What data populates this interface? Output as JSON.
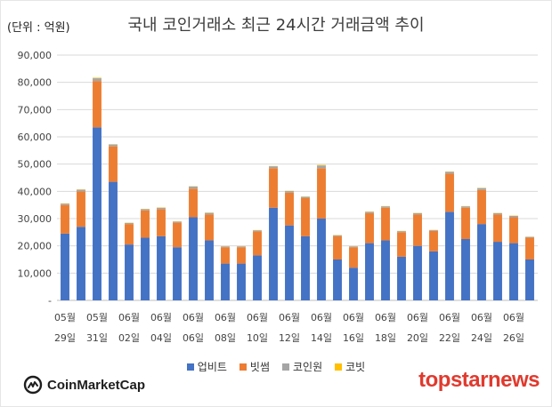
{
  "unit_label": "(단위 : 억원)",
  "brand_left": "CoinMarketCap",
  "brand_right": "topstarnews",
  "colors": {
    "upbit": "#4472C4",
    "bithumb": "#ED7D31",
    "coinone": "#A5A5A5",
    "korbit": "#FFC000"
  },
  "chart_data": {
    "type": "bar",
    "stacked": true,
    "title": "국내 코인거래소 최근 24시간 거래금액 추이",
    "xlabel": "",
    "ylabel": "",
    "ylim": [
      0,
      90000
    ],
    "yticks": [
      "-",
      "10,000",
      "20,000",
      "30,000",
      "40,000",
      "50,000",
      "60,000",
      "70,000",
      "80,000",
      "90,000"
    ],
    "grid": true,
    "legend_position": "bottom",
    "categories": [
      "05-29",
      "05-30",
      "05-31",
      "06-01",
      "06-02",
      "06-03",
      "06-04",
      "06-05",
      "06-06",
      "06-07",
      "06-08",
      "06-09",
      "06-10",
      "06-11",
      "06-12",
      "06-13",
      "06-14",
      "06-15",
      "06-16",
      "06-17",
      "06-18",
      "06-19",
      "06-20",
      "06-21",
      "06-22",
      "06-23",
      "06-24",
      "06-25",
      "06-26",
      "06-27"
    ],
    "x_tick_labels": [
      {
        "month": "05월",
        "day": "29일"
      },
      {
        "month": "05월",
        "day": "31일"
      },
      {
        "month": "06월",
        "day": "02일"
      },
      {
        "month": "06월",
        "day": "04일"
      },
      {
        "month": "06월",
        "day": "06일"
      },
      {
        "month": "06월",
        "day": "08일"
      },
      {
        "month": "06월",
        "day": "10일"
      },
      {
        "month": "06월",
        "day": "12일"
      },
      {
        "month": "06월",
        "day": "14일"
      },
      {
        "month": "06월",
        "day": "16일"
      },
      {
        "month": "06월",
        "day": "18일"
      },
      {
        "month": "06월",
        "day": "20일"
      },
      {
        "month": "06월",
        "day": "22일"
      },
      {
        "month": "06월",
        "day": "24일"
      },
      {
        "month": "06월",
        "day": "26일"
      }
    ],
    "series": [
      {
        "name": "업비트",
        "values": [
          24500,
          27000,
          63500,
          43500,
          20500,
          23000,
          23500,
          19500,
          30500,
          22000,
          13500,
          13500,
          16500,
          34000,
          27500,
          23500,
          30000,
          15000,
          12000,
          21000,
          22000,
          16000,
          20000,
          18000,
          32500,
          22500,
          28000,
          21500,
          21000,
          15000
        ]
      },
      {
        "name": "빗썸",
        "values": [
          10500,
          13000,
          17000,
          13000,
          7500,
          10000,
          10000,
          9000,
          10500,
          9500,
          6000,
          6000,
          8800,
          14500,
          12000,
          14000,
          18500,
          8500,
          7500,
          11000,
          12000,
          9000,
          11500,
          7500,
          14000,
          11500,
          12500,
          10000,
          9500,
          8000
        ]
      },
      {
        "name": "코인원",
        "values": [
          500,
          600,
          1000,
          700,
          400,
          500,
          500,
          400,
          800,
          600,
          300,
          300,
          400,
          700,
          600,
          500,
          1000,
          400,
          300,
          500,
          500,
          400,
          500,
          300,
          700,
          500,
          700,
          500,
          500,
          300
        ]
      },
      {
        "name": "코빗",
        "values": [
          100,
          100,
          200,
          100,
          100,
          100,
          100,
          100,
          100,
          100,
          50,
          50,
          100,
          100,
          100,
          100,
          200,
          100,
          50,
          100,
          100,
          100,
          100,
          50,
          100,
          100,
          100,
          100,
          100,
          50
        ]
      }
    ]
  }
}
